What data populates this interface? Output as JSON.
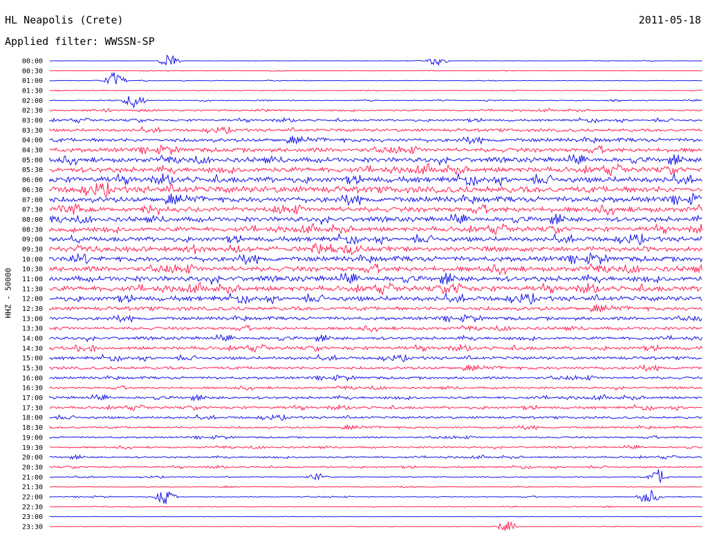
{
  "header": {
    "station": "HL Neapolis (Crete)",
    "date": "2011-05-18",
    "filter": "Applied filter: WWSSN-SP"
  },
  "axis": {
    "ylabel": "HHZ - 50000"
  },
  "colors": {
    "blue": "#1414e6",
    "red": "#ff1e50"
  },
  "chart_data": {
    "type": "helicorder",
    "title": "HL Neapolis (Crete)",
    "subtitle": "Applied filter: WWSSN-SP",
    "channel": "HHZ - 50000",
    "date": "2011-05-18",
    "row_duration_minutes": 30,
    "row_labels": [
      "00:00",
      "00:30",
      "01:00",
      "01:30",
      "02:00",
      "02:30",
      "03:00",
      "03:30",
      "04:00",
      "04:30",
      "05:00",
      "05:30",
      "06:00",
      "06:30",
      "07:00",
      "07:30",
      "08:00",
      "08:30",
      "09:00",
      "09:30",
      "10:00",
      "10:30",
      "11:00",
      "11:30",
      "12:00",
      "12:30",
      "13:00",
      "13:30",
      "14:00",
      "14:30",
      "15:00",
      "15:30",
      "16:00",
      "16:30",
      "17:00",
      "17:30",
      "18:00",
      "18:30",
      "19:00",
      "19:30",
      "20:00",
      "20:30",
      "21:00",
      "21:30",
      "22:00",
      "22:30",
      "23:00",
      "23:30"
    ],
    "row_colors": [
      "blue",
      "red",
      "blue",
      "red",
      "blue",
      "red",
      "blue",
      "red",
      "blue",
      "red",
      "blue",
      "red",
      "blue",
      "red",
      "blue",
      "red",
      "blue",
      "red",
      "blue",
      "red",
      "blue",
      "red",
      "blue",
      "red",
      "blue",
      "red",
      "blue",
      "red",
      "blue",
      "red",
      "blue",
      "red",
      "blue",
      "red",
      "blue",
      "red",
      "blue",
      "red",
      "blue",
      "red",
      "blue",
      "red",
      "blue",
      "red",
      "blue",
      "red",
      "blue",
      "red"
    ],
    "relative_noise_amplitude": [
      0.05,
      0.06,
      0.07,
      0.08,
      0.1,
      0.18,
      0.25,
      0.35,
      0.45,
      0.5,
      0.55,
      0.6,
      0.65,
      0.75,
      0.65,
      0.6,
      0.55,
      0.55,
      0.55,
      0.6,
      0.6,
      0.6,
      0.6,
      0.6,
      0.55,
      0.45,
      0.4,
      0.35,
      0.35,
      0.4,
      0.35,
      0.35,
      0.3,
      0.25,
      0.3,
      0.3,
      0.28,
      0.25,
      0.2,
      0.2,
      0.2,
      0.18,
      0.12,
      0.1,
      0.1,
      0.08,
      0.06,
      0.05
    ],
    "events": [
      {
        "row": 0,
        "minute": 5.5,
        "amp": 2.2
      },
      {
        "row": 0,
        "minute": 17.8,
        "amp": 2.0
      },
      {
        "row": 2,
        "minute": 3.0,
        "amp": 3.0
      },
      {
        "row": 4,
        "minute": 3.9,
        "amp": 2.5
      },
      {
        "row": 23,
        "minute": 18.8,
        "amp": 1.5
      },
      {
        "row": 42,
        "minute": 12.3,
        "amp": 1.2
      },
      {
        "row": 42,
        "minute": 28.0,
        "amp": 2.5
      },
      {
        "row": 44,
        "minute": 5.3,
        "amp": 2.5
      },
      {
        "row": 44,
        "minute": 27.5,
        "amp": 2.5
      },
      {
        "row": 47,
        "minute": 21.0,
        "amp": 2.0
      }
    ],
    "legend": "none",
    "grid": false
  }
}
